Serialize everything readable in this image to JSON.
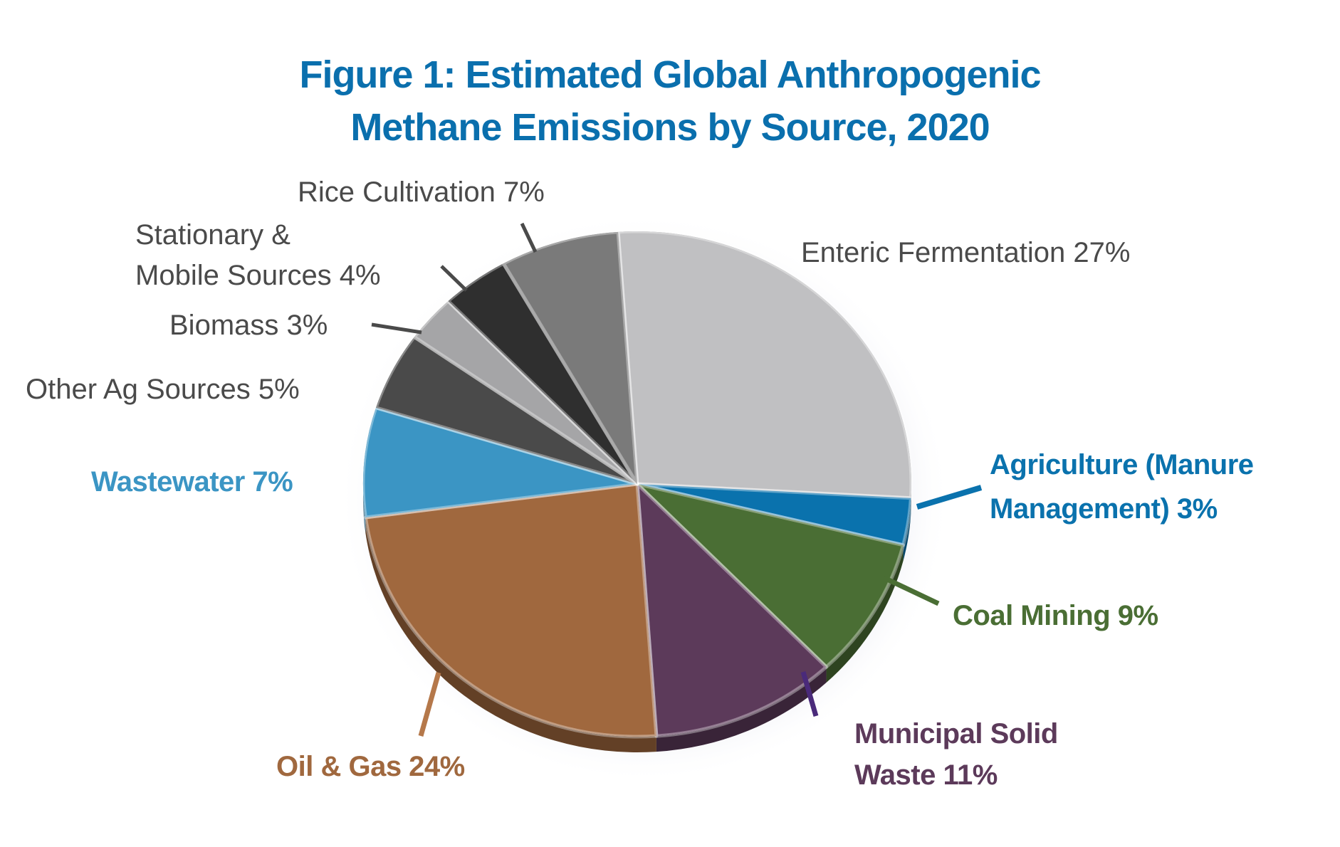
{
  "title": {
    "line1": "Figure 1: Estimated Global Anthropogenic",
    "line2": "Methane Emissions by Source, 2020"
  },
  "labels": {
    "enteric": "Enteric Fermentation 27%",
    "manure_1": "Agriculture (Manure",
    "manure_2": "Management) 3%",
    "coal": "Coal Mining 9%",
    "msw_1": "Municipal Solid",
    "msw_2": "Waste 11%",
    "oilgas": "Oil & Gas 24%",
    "wastewater": "Wastewater 7%",
    "otherag": "Other Ag Sources 5%",
    "biomass": "Biomass 3%",
    "stationary_1": "Stationary &",
    "stationary_2": "Mobile Sources 4%",
    "rice": "Rice Cultivation 7%"
  },
  "chart_data": {
    "type": "pie",
    "title": "Figure 1: Estimated Global Anthropogenic Methane Emissions by Source, 2020",
    "unit": "%",
    "categories": [
      "Enteric Fermentation",
      "Agriculture (Manure Management)",
      "Coal Mining",
      "Municipal Solid Waste",
      "Oil & Gas",
      "Wastewater",
      "Other Ag Sources",
      "Biomass",
      "Stationary & Mobile Sources",
      "Rice Cultivation"
    ],
    "values": [
      27,
      3,
      9,
      11,
      24,
      7,
      5,
      3,
      4,
      7
    ],
    "colors": [
      "#c0c0c2",
      "#0a72ad",
      "#4a6e34",
      "#5c3a5a",
      "#a0683e",
      "#3b95c4",
      "#4a4a4a",
      "#a5a5a7",
      "#2f2f2f",
      "#7a7a7a"
    ],
    "label_colors": [
      "#4a4a4a",
      "#0a72ad",
      "#4a6e34",
      "#5c3a5a",
      "#a0683e",
      "#3b95c4",
      "#4a4a4a",
      "#4a4a4a",
      "#4a4a4a",
      "#4a4a4a"
    ],
    "legend": "none (callout labels with leader lines)",
    "style": "3D tilted pie"
  }
}
